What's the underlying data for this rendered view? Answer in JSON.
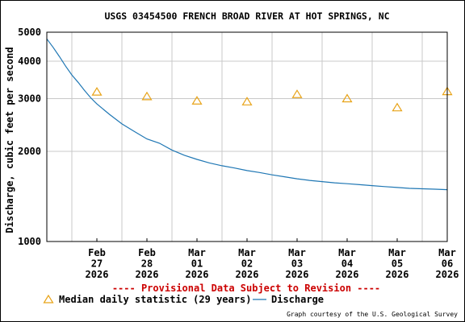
{
  "chart_data": {
    "type": "line",
    "title": "USGS 03454500 FRENCH BROAD RIVER AT HOT SPRINGS, NC",
    "ylabel": "Discharge, cubic feet per second",
    "xlabel": "",
    "y_scale": "log",
    "ylim": [
      1000,
      5000
    ],
    "y_ticks": [
      1000,
      2000,
      3000,
      4000,
      5000
    ],
    "x_range": [
      "2026-02-26T12:00",
      "2026-03-06T12:00"
    ],
    "x_ticks": [
      {
        "date": "2026-02-27",
        "month": "Feb",
        "day": "27",
        "year": "2026"
      },
      {
        "date": "2026-02-28",
        "month": "Feb",
        "day": "28",
        "year": "2026"
      },
      {
        "date": "2026-03-01",
        "month": "Mar",
        "day": "01",
        "year": "2026"
      },
      {
        "date": "2026-03-02",
        "month": "Mar",
        "day": "02",
        "year": "2026"
      },
      {
        "date": "2026-03-03",
        "month": "Mar",
        "day": "03",
        "year": "2026"
      },
      {
        "date": "2026-03-04",
        "month": "Mar",
        "day": "04",
        "year": "2026"
      },
      {
        "date": "2026-03-05",
        "month": "Mar",
        "day": "05",
        "year": "2026"
      },
      {
        "date": "2026-03-06",
        "month": "Mar",
        "day": "06",
        "year": "2026"
      }
    ],
    "grid": true,
    "legend_position": "bottom-left",
    "series": [
      {
        "name": "Discharge",
        "kind": "line",
        "color": "#1f77b4",
        "points": [
          {
            "x": "2026-02-26T12:00",
            "y": 4750
          },
          {
            "x": "2026-02-26T15:00",
            "y": 4450
          },
          {
            "x": "2026-02-26T18:00",
            "y": 4150
          },
          {
            "x": "2026-02-26T21:00",
            "y": 3850
          },
          {
            "x": "2026-02-27T00:00",
            "y": 3600
          },
          {
            "x": "2026-02-27T03:00",
            "y": 3400
          },
          {
            "x": "2026-02-27T06:00",
            "y": 3200
          },
          {
            "x": "2026-02-27T09:00",
            "y": 3020
          },
          {
            "x": "2026-02-27T12:00",
            "y": 2880
          },
          {
            "x": "2026-02-27T18:00",
            "y": 2660
          },
          {
            "x": "2026-02-28T00:00",
            "y": 2470
          },
          {
            "x": "2026-02-28T06:00",
            "y": 2330
          },
          {
            "x": "2026-02-28T12:00",
            "y": 2200
          },
          {
            "x": "2026-02-28T18:00",
            "y": 2130
          },
          {
            "x": "2026-03-01T00:00",
            "y": 2020
          },
          {
            "x": "2026-03-01T06:00",
            "y": 1940
          },
          {
            "x": "2026-03-01T12:00",
            "y": 1880
          },
          {
            "x": "2026-03-01T18:00",
            "y": 1830
          },
          {
            "x": "2026-03-02T00:00",
            "y": 1790
          },
          {
            "x": "2026-03-02T06:00",
            "y": 1760
          },
          {
            "x": "2026-03-02T12:00",
            "y": 1725
          },
          {
            "x": "2026-03-02T18:00",
            "y": 1700
          },
          {
            "x": "2026-03-03T00:00",
            "y": 1670
          },
          {
            "x": "2026-03-03T06:00",
            "y": 1645
          },
          {
            "x": "2026-03-03T12:00",
            "y": 1620
          },
          {
            "x": "2026-03-03T18:00",
            "y": 1600
          },
          {
            "x": "2026-03-04T00:00",
            "y": 1585
          },
          {
            "x": "2026-03-04T06:00",
            "y": 1570
          },
          {
            "x": "2026-03-04T12:00",
            "y": 1560
          },
          {
            "x": "2026-03-04T18:00",
            "y": 1548
          },
          {
            "x": "2026-03-05T00:00",
            "y": 1537
          },
          {
            "x": "2026-03-05T06:00",
            "y": 1525
          },
          {
            "x": "2026-03-05T12:00",
            "y": 1515
          },
          {
            "x": "2026-03-05T18:00",
            "y": 1505
          },
          {
            "x": "2026-03-06T00:00",
            "y": 1500
          },
          {
            "x": "2026-03-06T06:00",
            "y": 1495
          },
          {
            "x": "2026-03-06T12:00",
            "y": 1490
          }
        ]
      },
      {
        "name": "Median daily statistic (29 years)",
        "kind": "scatter",
        "marker": "triangle",
        "color": "#e8a317",
        "points": [
          {
            "x": "2026-02-27",
            "y": 3160
          },
          {
            "x": "2026-02-28",
            "y": 3050
          },
          {
            "x": "2026-03-01",
            "y": 2950
          },
          {
            "x": "2026-03-02",
            "y": 2930
          },
          {
            "x": "2026-03-03",
            "y": 3100
          },
          {
            "x": "2026-03-04",
            "y": 3000
          },
          {
            "x": "2026-03-05",
            "y": 2800
          },
          {
            "x": "2026-03-06",
            "y": 3170
          }
        ]
      }
    ],
    "provisional_note": "---- Provisional Data Subject to Revision ----",
    "credit": "Graph courtesy of the U.S. Geological Survey"
  }
}
